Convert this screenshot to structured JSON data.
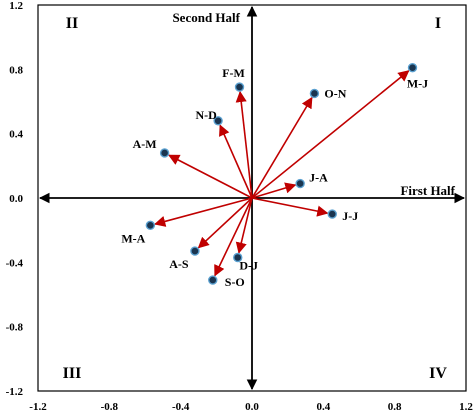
{
  "chart_data": {
    "type": "scatter",
    "title": "",
    "xlabel": "First Half",
    "ylabel": "Second Half",
    "xlim": [
      -1.2,
      1.2
    ],
    "ylim": [
      -1.2,
      1.2
    ],
    "xticks": [
      "-1.2",
      "-0.8",
      "-0.4",
      "0.0",
      "0.4",
      "0.8",
      "1.2"
    ],
    "xtick_values": [
      -1.2,
      -0.8,
      -0.4,
      0.0,
      0.4,
      0.8,
      1.2
    ],
    "yticks": [
      "1.2",
      "0.8",
      "0.4",
      "0.0",
      "-0.4",
      "-0.8",
      "-1.2"
    ],
    "ytick_values": [
      1.2,
      0.8,
      0.4,
      0.0,
      -0.4,
      -0.8,
      -1.2
    ],
    "quadrants": [
      "I",
      "II",
      "III",
      "IV"
    ],
    "grid": false,
    "vectors_from_origin": true,
    "arrow_color": "#c00000",
    "point_color": "#1a3550",
    "point_ring_color": "#5aa0d0",
    "points": [
      {
        "label": "M-J",
        "x": 0.9,
        "y": 0.81
      },
      {
        "label": "O-N",
        "x": 0.35,
        "y": 0.65
      },
      {
        "label": "F-M",
        "x": -0.07,
        "y": 0.69
      },
      {
        "label": "N-D",
        "x": -0.19,
        "y": 0.48
      },
      {
        "label": "A-M",
        "x": -0.49,
        "y": 0.28
      },
      {
        "label": "J-A",
        "x": 0.27,
        "y": 0.09
      },
      {
        "label": "J-J",
        "x": 0.45,
        "y": -0.1
      },
      {
        "label": "M-A",
        "x": -0.57,
        "y": -0.17
      },
      {
        "label": "A-S",
        "x": -0.32,
        "y": -0.33
      },
      {
        "label": "D-J",
        "x": -0.08,
        "y": -0.37
      },
      {
        "label": "S-O",
        "x": -0.22,
        "y": -0.51
      }
    ]
  }
}
